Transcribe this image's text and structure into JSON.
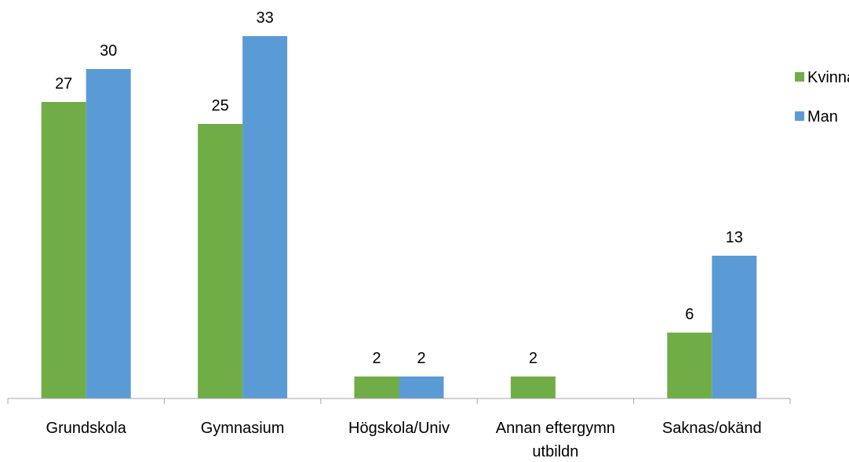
{
  "chart_data": {
    "type": "bar",
    "title": "",
    "xlabel": "",
    "ylabel": "",
    "categories": [
      [
        "Grundskola"
      ],
      [
        "Gymnasium"
      ],
      [
        "Högskola/Univ"
      ],
      [
        "Annan eftergymn",
        "utbildn"
      ],
      [
        "Saknas/okänd"
      ]
    ],
    "series": [
      {
        "name": "Kvinna",
        "color": "#70AD47",
        "values": [
          27,
          25,
          2,
          2,
          6
        ]
      },
      {
        "name": "Man",
        "color": "#5B9BD5",
        "values": [
          30,
          33,
          2,
          0,
          13
        ]
      }
    ],
    "ylim": [
      0,
      33
    ],
    "show_value_axis": false,
    "grid": false,
    "legend": "right"
  }
}
